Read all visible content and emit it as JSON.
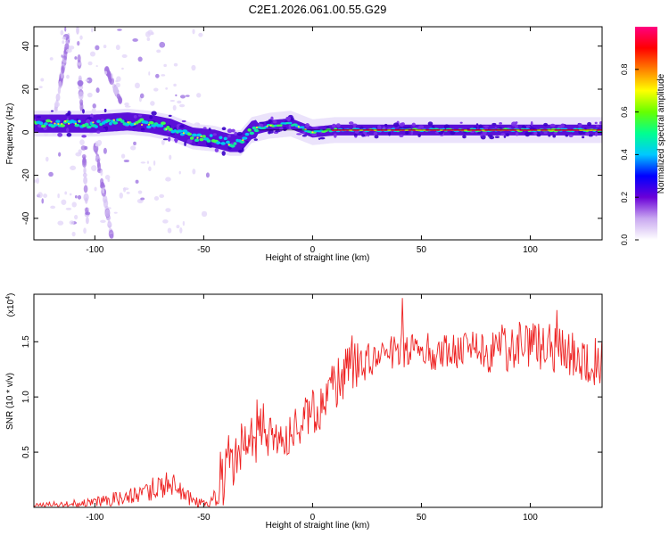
{
  "title": "C2E1.2026.061.00.55.G29",
  "chart_data": [
    {
      "type": "heatmap",
      "xlabel": "Height of straight line (km)",
      "ylabel": "Frequency (Hz)",
      "xlim": [
        -128,
        133
      ],
      "ylim": [
        -50,
        49
      ],
      "xticks": [
        -100,
        -50,
        0,
        50,
        100
      ],
      "xtick_labels": [
        "-100",
        "-50",
        "0",
        "50",
        "100"
      ],
      "yticks": [
        -40,
        -20,
        0,
        20,
        40
      ],
      "ytick_labels": [
        "-40",
        "-20",
        "0",
        "20",
        "40"
      ],
      "ridge": [
        {
          "x": -128,
          "y": 4
        },
        {
          "x": -100,
          "y": 4
        },
        {
          "x": -85,
          "y": 5
        },
        {
          "x": -75,
          "y": 4
        },
        {
          "x": -65,
          "y": 2
        },
        {
          "x": -55,
          "y": -2
        },
        {
          "x": -45,
          "y": -3
        },
        {
          "x": -38,
          "y": -5
        },
        {
          "x": -33,
          "y": -5
        },
        {
          "x": -28,
          "y": 1
        },
        {
          "x": -20,
          "y": 3
        },
        {
          "x": -10,
          "y": 4
        },
        {
          "x": -5,
          "y": 2
        },
        {
          "x": 0,
          "y": 0
        },
        {
          "x": 10,
          "y": 1
        },
        {
          "x": 30,
          "y": 1
        },
        {
          "x": 60,
          "y": 1
        },
        {
          "x": 133,
          "y": 1
        }
      ],
      "colorbar": {
        "label": "Normalized spectral amplitude",
        "ticks": [
          0.0,
          0.2,
          0.4,
          0.6,
          0.8
        ],
        "tick_labels": [
          "0.0",
          "0.2",
          "0.4",
          "0.6",
          "0.8"
        ],
        "range": [
          0,
          1
        ],
        "colors": [
          "#ffffff",
          "#c9a8f0",
          "#6a00d8",
          "#0000ff",
          "#00c8ff",
          "#00ff90",
          "#66ff00",
          "#ffff00",
          "#ff8000",
          "#ff0000",
          "#ff0080"
        ]
      }
    },
    {
      "type": "line",
      "xlabel": "Height of straight line (km)",
      "ylabel": "SNR (10 * v/v)",
      "scale_label": "(x10",
      "scale_exponent": "4",
      "scale_suffix": ")",
      "xlim": [
        -128,
        133
      ],
      "ylim": [
        0,
        1.93
      ],
      "xticks": [
        -100,
        -50,
        0,
        50,
        100
      ],
      "xtick_labels": [
        "-100",
        "-50",
        "0",
        "50",
        "100"
      ],
      "yticks": [
        0.5,
        1.0,
        1.5
      ],
      "ytick_labels": [
        "0.5",
        "1.0",
        "1.5"
      ],
      "color": "#ee2222",
      "series": [
        {
          "name": "SNR",
          "x": [
            -128,
            -115,
            -100,
            -90,
            -80,
            -70,
            -65,
            -60,
            -55,
            -50,
            -47,
            -45,
            -42,
            -40,
            -36,
            -32,
            -28,
            -25,
            -20,
            -15,
            -10,
            -5,
            0,
            5,
            10,
            15,
            20,
            25,
            30,
            35,
            40,
            45,
            50,
            55,
            60,
            70,
            80,
            90,
            100,
            110,
            120,
            133
          ],
          "y": [
            0.01,
            0.02,
            0.04,
            0.08,
            0.12,
            0.2,
            0.22,
            0.12,
            0.06,
            0.04,
            0.05,
            0.1,
            0.25,
            0.35,
            0.42,
            0.5,
            0.6,
            0.72,
            0.7,
            0.68,
            0.7,
            0.75,
            0.85,
            0.95,
            1.1,
            1.22,
            1.28,
            1.33,
            1.38,
            1.4,
            1.42,
            1.42,
            1.4,
            1.38,
            1.4,
            1.43,
            1.42,
            1.45,
            1.47,
            1.44,
            1.38,
            1.3
          ]
        }
      ]
    }
  ]
}
